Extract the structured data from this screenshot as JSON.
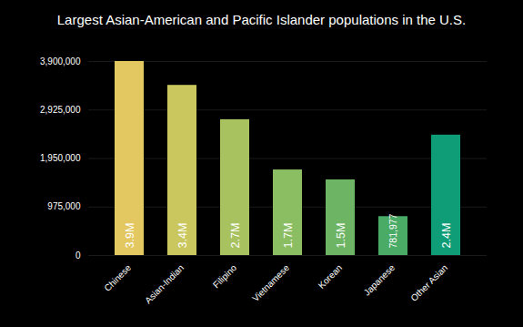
{
  "chart_data": {
    "type": "bar",
    "title": "Largest Asian-American and Pacific Islander populations in the U.S.",
    "categories": [
      "Chinese",
      "Asian-Indian",
      "Filipino",
      "Vietnamese",
      "Korean",
      "Japanese",
      "Other Asian"
    ],
    "values": [
      3900000,
      3420000,
      2730000,
      1720000,
      1520000,
      781977,
      2420000
    ],
    "value_labels": [
      "3.9M",
      "3.4M",
      "2.7M",
      "1.7M",
      "1.5M",
      "781,977",
      "2.4M"
    ],
    "colors": [
      "#e3c760",
      "#c9c75e",
      "#a9c260",
      "#8bbd62",
      "#6db565",
      "#4aab66",
      "#0f9d77"
    ],
    "ylim": [
      0,
      3900000
    ],
    "yticks": [
      0,
      {
        "value": 975000,
        "label": "975,000"
      },
      {
        "value": 1950000,
        "label": "1,950,000"
      },
      {
        "value": 2925000,
        "label": "2,925,000"
      },
      {
        "value": 3900000,
        "label": "3,900,000"
      }
    ],
    "grid": true,
    "data_labels": true
  }
}
